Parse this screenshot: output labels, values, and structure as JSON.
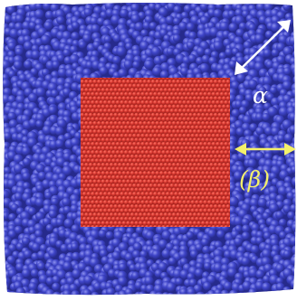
{
  "labels": {
    "alpha": "α",
    "beta": "(β)"
  },
  "colors": {
    "matrix": "#3f45c9",
    "matrix_highlight": "#8c90ee",
    "matrix_shadow": "#262a8c",
    "inclusion": "#d8362f",
    "inclusion_highlight": "#ff7a6a",
    "inclusion_shadow": "#8a1c17",
    "alpha_arrow": "#ffffff",
    "beta_arrow": "#f4f06a"
  }
}
